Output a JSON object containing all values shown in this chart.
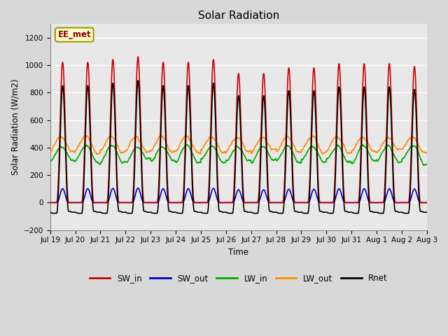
{
  "title": "Solar Radiation",
  "ylabel": "Solar Radiation (W/m2)",
  "xlabel": "Time",
  "ylim": [
    -200,
    1300
  ],
  "yticks": [
    -200,
    0,
    200,
    400,
    600,
    800,
    1000,
    1200
  ],
  "annotation_text": "EE_met",
  "background_color": "#d8d8d8",
  "plot_bg_color": "#e8e8e8",
  "grid_color": "#ffffff",
  "series": {
    "SW_in": {
      "color": "#cc0000",
      "lw": 1.2
    },
    "SW_out": {
      "color": "#0000cc",
      "lw": 1.2
    },
    "LW_in": {
      "color": "#00aa00",
      "lw": 1.2
    },
    "LW_out": {
      "color": "#ff8800",
      "lw": 1.2
    },
    "Rnet": {
      "color": "#000000",
      "lw": 1.2
    }
  },
  "x_tick_labels": [
    "Jul 19",
    "Jul 20",
    "Jul 21",
    "Jul 22",
    "Jul 23",
    "Jul 24",
    "Jul 25",
    "Jul 26",
    "Jul 27",
    "Jul 28",
    "Jul 29",
    "Jul 30",
    "Jul 31",
    "Aug 1",
    "Aug 2",
    "Aug 3"
  ],
  "n_days": 15,
  "pts_per_day": 144,
  "cloud_factor": [
    1.0,
    1.0,
    1.02,
    1.04,
    1.0,
    1.0,
    1.02,
    0.92,
    0.92,
    0.96,
    0.96,
    0.99,
    0.99,
    0.99,
    0.97
  ]
}
